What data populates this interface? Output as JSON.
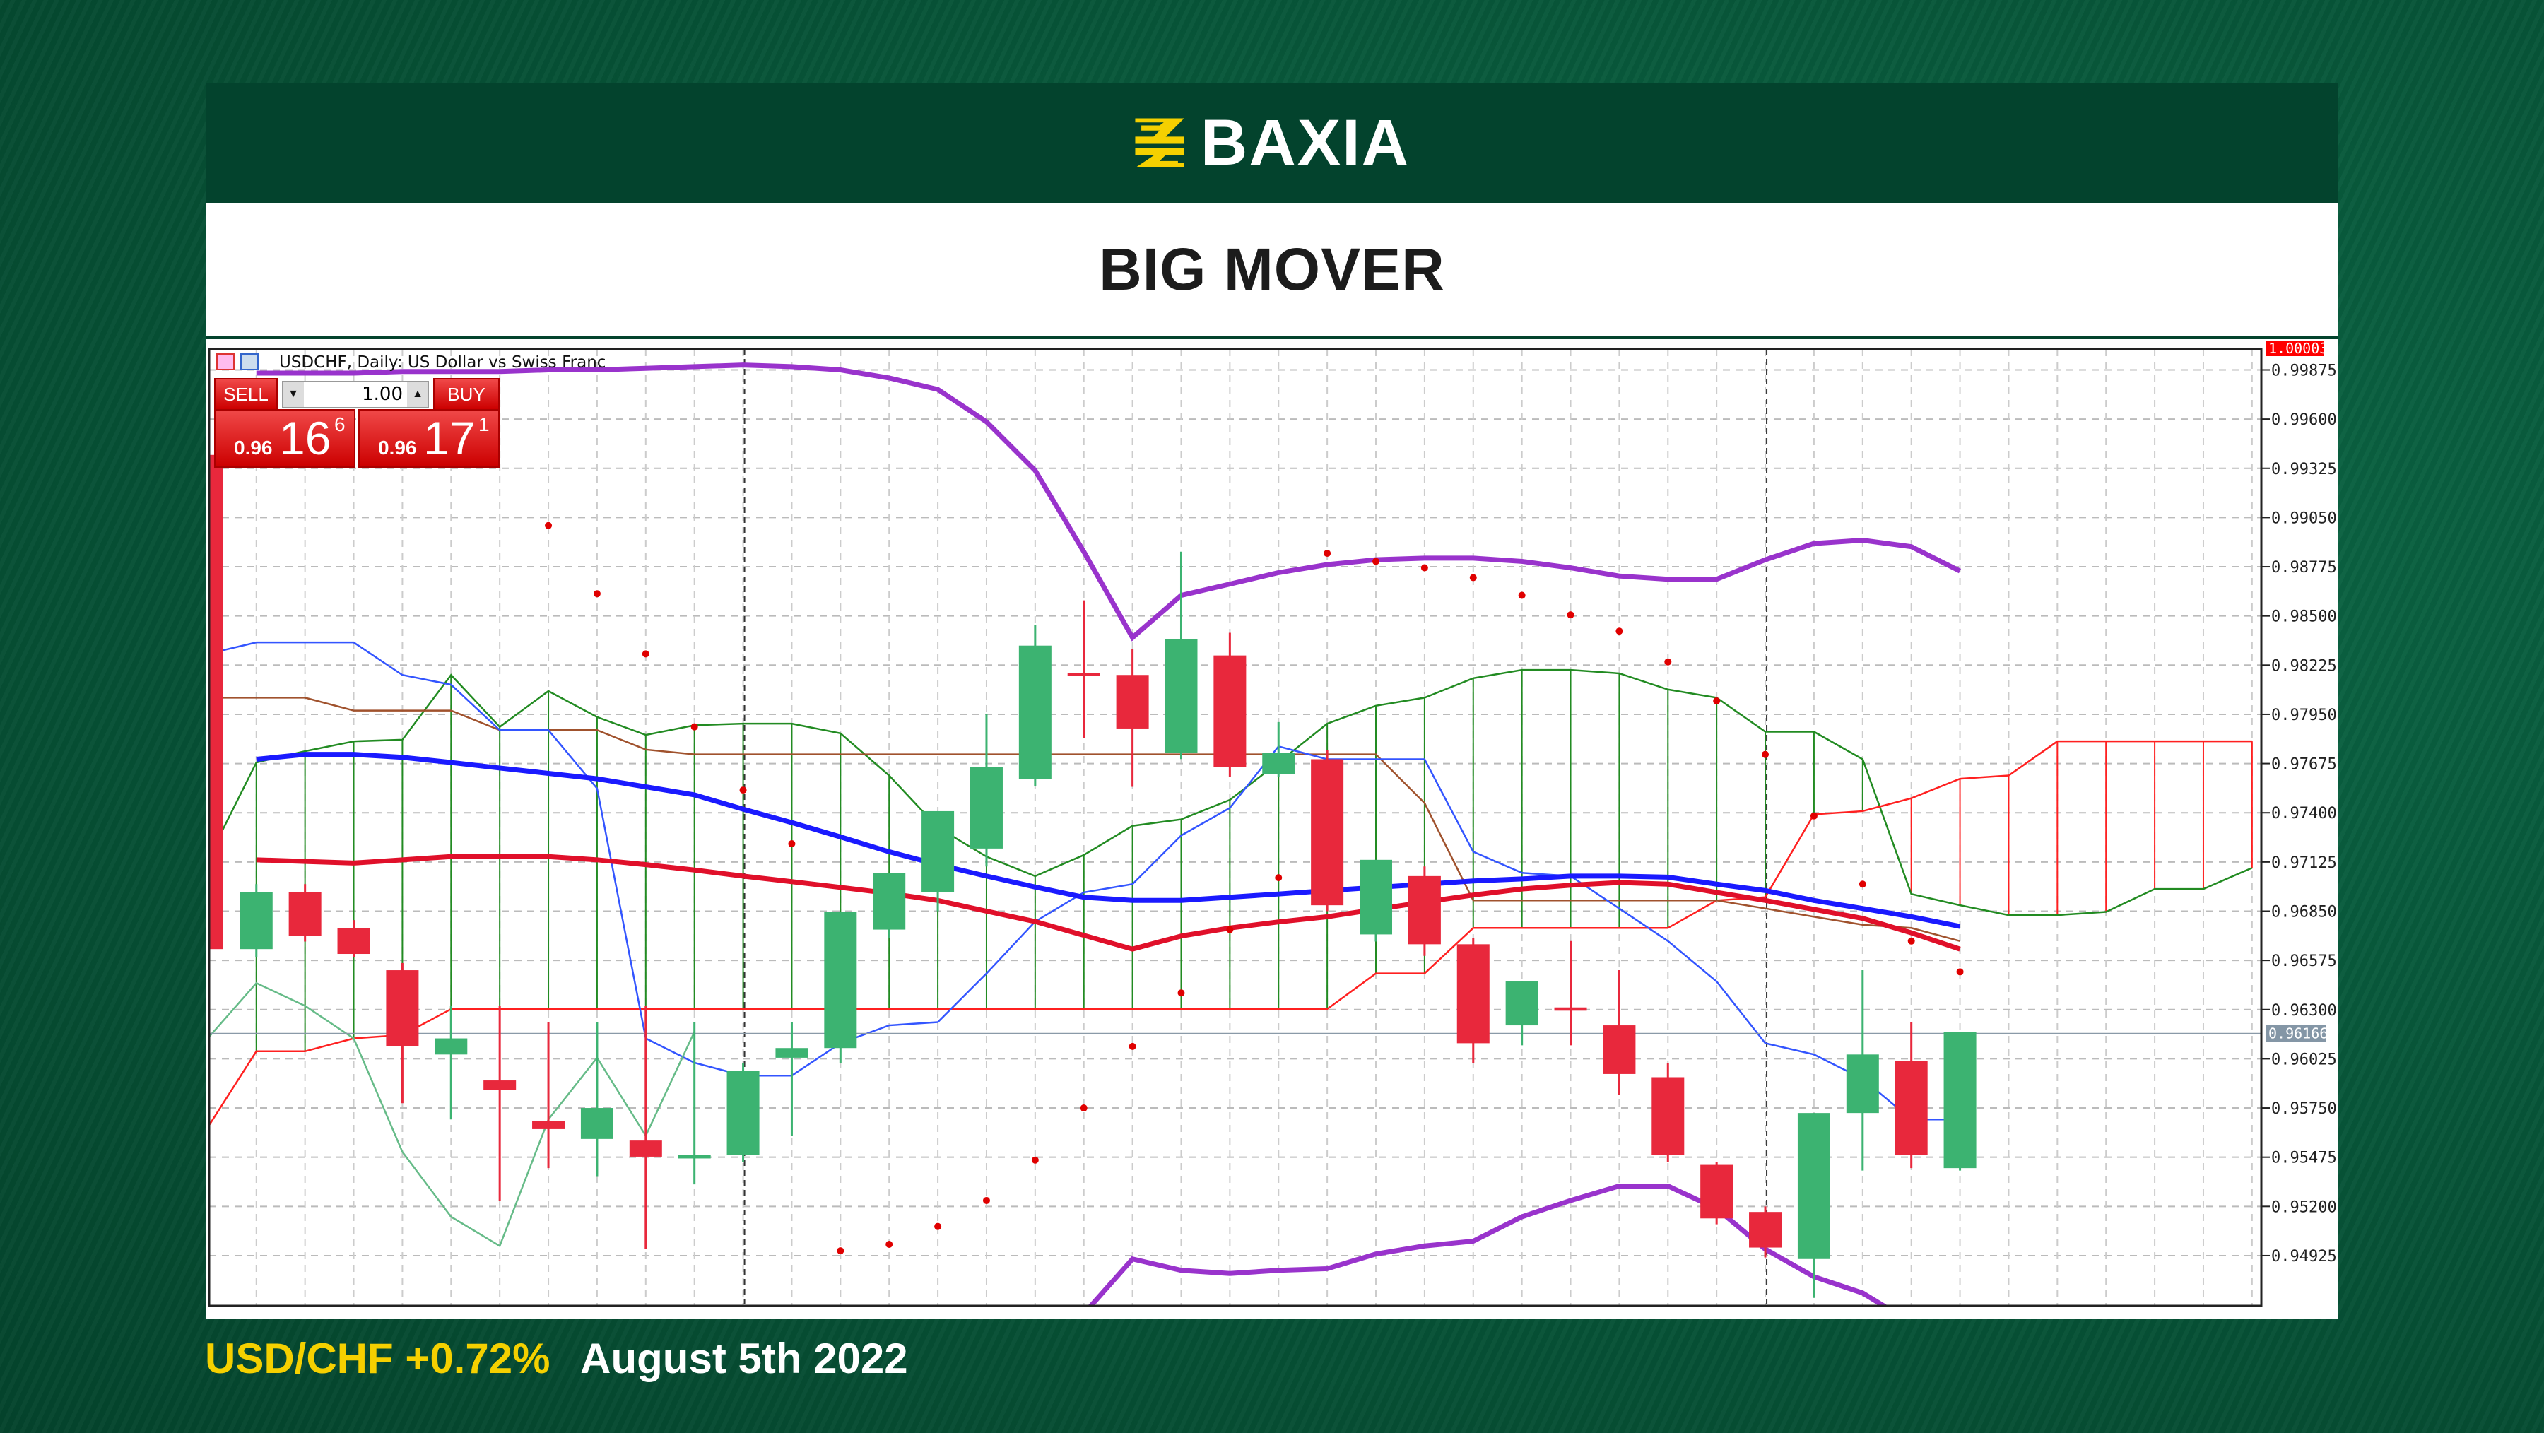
{
  "brand": {
    "name": "BAXIA",
    "logo_color": "#f5d000"
  },
  "title": "BIG MOVER",
  "chart_window": {
    "title": "USDCHF, Daily:  US Dollar vs Swiss Franc",
    "trade_panel": {
      "sell_label": "SELL",
      "buy_label": "BUY",
      "lot": "1.00",
      "sell_prefix": "0.96",
      "sell_big": "16",
      "sell_sup": "6",
      "buy_prefix": "0.96",
      "buy_big": "17",
      "buy_sup": "1"
    }
  },
  "footer": {
    "pair_change": "USD/CHF +0.72%",
    "date": "August 5th 2022"
  },
  "chart_data": {
    "type": "candlestick",
    "symbol": "USDCHF",
    "timeframe": "Daily",
    "ylim": [
      0.9464,
      1.0
    ],
    "y_ticks": [
      "0.99875",
      "0.99600",
      "0.99325",
      "0.99050",
      "0.98775",
      "0.98500",
      "0.98225",
      "0.97950",
      "0.97675",
      "0.97400",
      "0.97125",
      "0.96850",
      "0.96575",
      "0.96300",
      "0.96025",
      "0.95750",
      "0.95475",
      "0.95200",
      "0.94925"
    ],
    "top_label": "1.00003",
    "current_price": "0.96166",
    "grid": true,
    "colors": {
      "bull": "#3cb371",
      "bear": "#e8283c",
      "bollinger": "#9933cc",
      "ma_fast": "#1a1aff",
      "ma_slow": "#e0102a",
      "sar": "#e00000",
      "cloud_up": "#228b22",
      "cloud_down": "#ff2020",
      "tenkan": "#3355ff",
      "kijun": "#a0522d",
      "chikou": "#66bb88"
    },
    "candles": [
      [
        0.96638,
        0.97001,
        0.96593,
        0.96955
      ],
      [
        0.96955,
        0.97001,
        0.9668,
        0.96711
      ],
      [
        0.96756,
        0.968,
        0.96593,
        0.96611
      ],
      [
        0.9652,
        0.9656,
        0.95777,
        0.96094
      ],
      [
        0.96049,
        0.96321,
        0.95686,
        0.96139
      ],
      [
        0.95904,
        0.96321,
        0.95233,
        0.95849
      ],
      [
        0.95677,
        0.9623,
        0.95414,
        0.95632
      ],
      [
        0.95577,
        0.9623,
        0.95369,
        0.9575
      ],
      [
        0.95568,
        0.96321,
        0.94961,
        0.95478
      ],
      [
        0.95468,
        0.9623,
        0.95323,
        0.95487
      ],
      [
        0.95487,
        0.96,
        0.9545,
        0.95958
      ],
      [
        0.96031,
        0.9623,
        0.95595,
        0.96085
      ],
      [
        0.96085,
        0.96847,
        0.96,
        0.96847
      ],
      [
        0.96747,
        0.97064,
        0.967,
        0.97064
      ],
      [
        0.96955,
        0.97409,
        0.9685,
        0.97409
      ],
      [
        0.972,
        0.97953,
        0.971,
        0.97654
      ],
      [
        0.9759,
        0.98451,
        0.9755,
        0.98334
      ],
      [
        0.98179,
        0.98587,
        0.97817,
        0.9817
      ],
      [
        0.9817,
        0.98315,
        0.97545,
        0.97871
      ],
      [
        0.97735,
        0.98859,
        0.977,
        0.9837
      ],
      [
        0.98279,
        0.98406,
        0.976,
        0.97654
      ],
      [
        0.97617,
        0.97907,
        0.976,
        0.97735
      ],
      [
        0.97699,
        0.9775,
        0.9685,
        0.96883
      ],
      [
        0.9672,
        0.97137,
        0.9668,
        0.97137
      ],
      [
        0.97046,
        0.971,
        0.966,
        0.96665
      ],
      [
        0.96665,
        0.967,
        0.96003,
        0.96112
      ],
      [
        0.96212,
        0.96457,
        0.961,
        0.96457
      ],
      [
        0.96312,
        0.96683,
        0.961,
        0.96294
      ],
      [
        0.96212,
        0.9652,
        0.95822,
        0.9594
      ],
      [
        0.95922,
        0.96,
        0.9545,
        0.95487
      ],
      [
        0.95432,
        0.9545,
        0.951,
        0.95133
      ],
      [
        0.95169,
        0.952,
        0.94915,
        0.9497
      ],
      [
        0.94906,
        0.95722,
        0.94689,
        0.95722
      ],
      [
        0.95722,
        0.9652,
        0.954,
        0.96049
      ],
      [
        0.96012,
        0.9623,
        0.95414,
        0.95487
      ],
      [
        0.95414,
        0.96176,
        0.954,
        0.96176
      ]
    ],
    "bollinger_upper": [
      0.99857,
      0.99857,
      0.99857,
      0.99866,
      0.99866,
      0.99866,
      0.99875,
      0.99875,
      0.99884,
      0.99893,
      0.99902,
      0.99893,
      0.99875,
      0.9983,
      0.99766,
      0.99585,
      0.99313,
      0.98859,
      0.98379,
      0.98615,
      0.98678,
      0.98742,
      0.98787,
      0.98814,
      0.98823,
      0.98823,
      0.98805,
      0.98769,
      0.98723,
      0.98705,
      0.98705,
      0.98814,
      0.98905,
      0.98923,
      0.98887,
      0.98751
    ],
    "bollinger_lower": [
      0.944,
      0.944,
      0.944,
      0.944,
      0.944,
      0.944,
      0.944,
      0.944,
      0.944,
      0.944,
      0.944,
      0.944,
      0.944,
      0.944,
      0.944,
      0.944,
      0.944,
      0.946,
      0.94906,
      0.94843,
      0.94825,
      0.94843,
      0.94852,
      0.94934,
      0.94979,
      0.95006,
      0.95142,
      0.95233,
      0.95314,
      0.95314,
      0.95188,
      0.94961,
      0.94807,
      0.94716,
      0.9455,
      0.944
    ],
    "ma_fast": [
      0.97699,
      0.97726,
      0.97726,
      0.9771,
      0.97681,
      0.9765,
      0.9762,
      0.9759,
      0.97545,
      0.975,
      0.9742,
      0.97345,
      0.97265,
      0.97182,
      0.9711,
      0.97046,
      0.96985,
      0.96928,
      0.9691,
      0.9691,
      0.96928,
      0.96946,
      0.96965,
      0.96983,
      0.97,
      0.97019,
      0.9703,
      0.97046,
      0.97046,
      0.9704,
      0.97001,
      0.96965,
      0.9691,
      0.96865,
      0.96819,
      0.96765
    ],
    "ma_slow": [
      0.97137,
      0.97128,
      0.97119,
      0.97137,
      0.97155,
      0.97155,
      0.97155,
      0.97137,
      0.9711,
      0.9708,
      0.97046,
      0.97015,
      0.96983,
      0.9695,
      0.9691,
      0.9685,
      0.96792,
      0.96715,
      0.96638,
      0.96711,
      0.96756,
      0.9679,
      0.96819,
      0.9686,
      0.96901,
      0.9694,
      0.96974,
      0.96995,
      0.9701,
      0.97001,
      0.96955,
      0.9691,
      0.9686,
      0.9681,
      0.96729,
      0.96638
    ],
    "parabolic_sar": [
      null,
      null,
      null,
      null,
      null,
      null,
      0.99005,
      0.98624,
      0.98288,
      0.9788,
      0.97527,
      0.97227,
      0.94952,
      0.94988,
      0.95088,
      0.95233,
      0.95459,
      0.9575,
      0.96094,
      0.96393,
      0.96747,
      0.97037,
      0.9885,
      0.98805,
      0.98769,
      0.98714,
      0.98615,
      0.98506,
      0.98415,
      0.98243,
      0.98025,
      0.97726,
      0.97382,
      0.97001,
      0.96683,
      0.96511
    ],
    "ichimoku": {
      "senkou_a": [
        0.97137,
        0.97681,
        0.97744,
        0.97799,
        0.97808,
        0.9817,
        0.9788,
        0.9808,
        0.97935,
        0.97835,
        0.97889,
        0.97898,
        0.97898,
        0.97844,
        0.97608,
        0.97318,
        0.97155,
        0.97046,
        0.97164,
        0.97327,
        0.97363,
        0.97472,
        0.97681,
        0.97898,
        0.97998,
        0.98043,
        0.98152,
        0.98198,
        0.98198,
        0.98179,
        0.98089,
        0.98043,
        0.97853,
        0.97853,
        0.97699,
        0.96946,
        0.96883,
        0.96828,
        0.96828,
        0.96846,
        0.96974,
        0.96974,
        0.97092
      ],
      "senkou_b": [
        0.95641,
        0.96067,
        0.96067,
        0.96139,
        0.96158,
        0.96303,
        0.96303,
        0.96303,
        0.96303,
        0.96303,
        0.96303,
        0.96303,
        0.96303,
        0.96303,
        0.96303,
        0.96303,
        0.96303,
        0.96303,
        0.96303,
        0.96303,
        0.96303,
        0.96303,
        0.96303,
        0.96303,
        0.96502,
        0.96502,
        0.96756,
        0.96756,
        0.96756,
        0.96756,
        0.96756,
        0.9691,
        0.96928,
        0.97391,
        0.97409,
        0.97481,
        0.9759,
        0.97608,
        0.97799,
        0.97799,
        0.97799,
        0.97799,
        0.97799
      ],
      "tenkan": [
        0.98288,
        0.98352,
        0.98352,
        0.98352,
        0.9817,
        0.98116,
        0.97862,
        0.97862,
        0.97536,
        0.96139,
        0.96003,
        0.95931,
        0.95931,
        0.96112,
        0.96212,
        0.9623,
        0.96502,
        0.96792,
        0.96955,
        0.97001,
        0.97273,
        0.97427,
        0.97771,
        0.97699,
        0.97699,
        0.97699,
        0.97182,
        0.97064,
        0.97046,
        0.96865,
        0.96683,
        0.96457,
        0.96112,
        0.96049,
        0.95913,
        0.95686,
        0.95686
      ],
      "kijun": [
        0.98043,
        0.98043,
        0.98043,
        0.97971,
        0.97971,
        0.97971,
        0.97862,
        0.97862,
        0.97862,
        0.97753,
        0.97726,
        0.97726,
        0.97726,
        0.97726,
        0.97726,
        0.97726,
        0.97726,
        0.97726,
        0.97726,
        0.97726,
        0.97726,
        0.97726,
        0.97726,
        0.97726,
        0.97726,
        0.97454,
        0.9691,
        0.9691,
        0.9691,
        0.9691,
        0.9691,
        0.9691,
        0.96865,
        0.96819,
        0.96774,
        0.96756,
        0.96683
      ],
      "chikou": [
        0.96139,
        0.96448,
        0.96321,
        0.96139,
        0.95505,
        0.95142,
        0.94979,
        0.95686,
        0.96031,
        0.95595,
        0.96176
      ]
    }
  }
}
